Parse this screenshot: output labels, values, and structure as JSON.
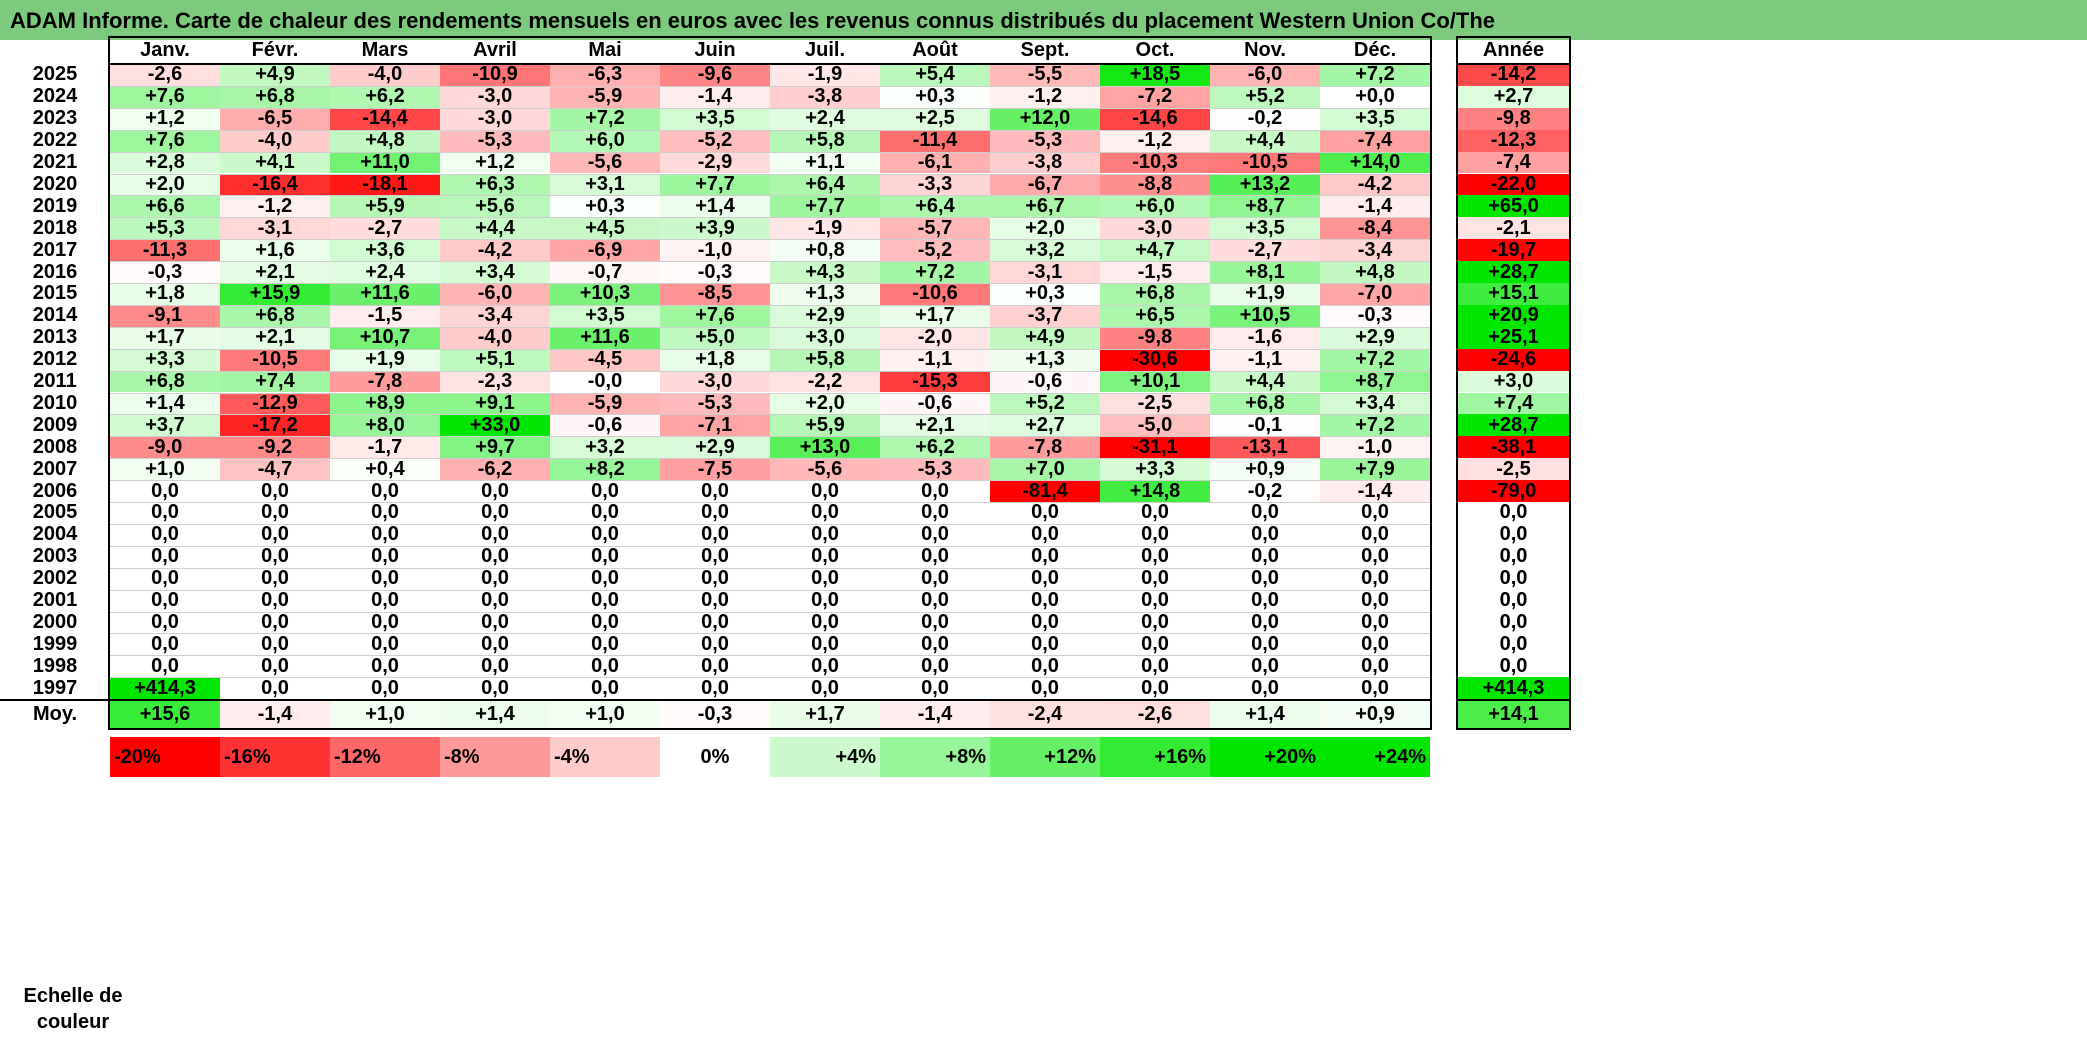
{
  "title": "ADAM Informe. Carte de chaleur des rendements mensuels en euros avec les revenus connus distribués du placement Western Union Co/The",
  "chart_data": {
    "type": "heatmap",
    "title": "ADAM Informe. Carte de chaleur des rendements mensuels en euros avec les revenus connus distribués du placement Western Union Co/The",
    "columns": [
      "Janv.",
      "Févr.",
      "Mars",
      "Avril",
      "Mai",
      "Juin",
      "Juil.",
      "Août",
      "Sept.",
      "Oct.",
      "Nov.",
      "Déc."
    ],
    "year_column": "Année",
    "rows": [
      {
        "year": "2025",
        "months": [
          "-2,6",
          "+4,9",
          "-4,0",
          "-10,9",
          "-6,3",
          "-9,6",
          "-1,9",
          "+5,4",
          "-5,5",
          "+18,5",
          "-6,0",
          "+7,2"
        ],
        "annual": "-14,2"
      },
      {
        "year": "2024",
        "months": [
          "+7,6",
          "+6,8",
          "+6,2",
          "-3,0",
          "-5,9",
          "-1,4",
          "-3,8",
          "+0,3",
          "-1,2",
          "-7,2",
          "+5,2",
          "+0,0"
        ],
        "annual": "+2,7"
      },
      {
        "year": "2023",
        "months": [
          "+1,2",
          "-6,5",
          "-14,4",
          "-3,0",
          "+7,2",
          "+3,5",
          "+2,4",
          "+2,5",
          "+12,0",
          "-14,6",
          "-0,2",
          "+3,5"
        ],
        "annual": "-9,8"
      },
      {
        "year": "2022",
        "months": [
          "+7,6",
          "-4,0",
          "+4,8",
          "-5,3",
          "+6,0",
          "-5,2",
          "+5,8",
          "-11,4",
          "-5,3",
          "-1,2",
          "+4,4",
          "-7,4"
        ],
        "annual": "-12,3"
      },
      {
        "year": "2021",
        "months": [
          "+2,8",
          "+4,1",
          "+11,0",
          "+1,2",
          "-5,6",
          "-2,9",
          "+1,1",
          "-6,1",
          "-3,8",
          "-10,3",
          "-10,5",
          "+14,0"
        ],
        "annual": "-7,4"
      },
      {
        "year": "2020",
        "months": [
          "+2,0",
          "-16,4",
          "-18,1",
          "+6,3",
          "+3,1",
          "+7,7",
          "+6,4",
          "-3,3",
          "-6,7",
          "-8,8",
          "+13,2",
          "-4,2"
        ],
        "annual": "-22,0"
      },
      {
        "year": "2019",
        "months": [
          "+6,6",
          "-1,2",
          "+5,9",
          "+5,6",
          "+0,3",
          "+1,4",
          "+7,7",
          "+6,4",
          "+6,7",
          "+6,0",
          "+8,7",
          "-1,4"
        ],
        "annual": "+65,0"
      },
      {
        "year": "2018",
        "months": [
          "+5,3",
          "-3,1",
          "-2,7",
          "+4,4",
          "+4,5",
          "+3,9",
          "-1,9",
          "-5,7",
          "+2,0",
          "-3,0",
          "+3,5",
          "-8,4"
        ],
        "annual": "-2,1"
      },
      {
        "year": "2017",
        "months": [
          "-11,3",
          "+1,6",
          "+3,6",
          "-4,2",
          "-6,9",
          "-1,0",
          "+0,8",
          "-5,2",
          "+3,2",
          "+4,7",
          "-2,7",
          "-3,4"
        ],
        "annual": "-19,7"
      },
      {
        "year": "2016",
        "months": [
          "-0,3",
          "+2,1",
          "+2,4",
          "+3,4",
          "-0,7",
          "-0,3",
          "+4,3",
          "+7,2",
          "-3,1",
          "-1,5",
          "+8,1",
          "+4,8"
        ],
        "annual": "+28,7"
      },
      {
        "year": "2015",
        "months": [
          "+1,8",
          "+15,9",
          "+11,6",
          "-6,0",
          "+10,3",
          "-8,5",
          "+1,3",
          "-10,6",
          "+0,3",
          "+6,8",
          "+1,9",
          "-7,0"
        ],
        "annual": "+15,1"
      },
      {
        "year": "2014",
        "months": [
          "-9,1",
          "+6,8",
          "-1,5",
          "-3,4",
          "+3,5",
          "+7,6",
          "+2,9",
          "+1,7",
          "-3,7",
          "+6,5",
          "+10,5",
          "-0,3"
        ],
        "annual": "+20,9"
      },
      {
        "year": "2013",
        "months": [
          "+1,7",
          "+2,1",
          "+10,7",
          "-4,0",
          "+11,6",
          "+5,0",
          "+3,0",
          "-2,0",
          "+4,9",
          "-9,8",
          "-1,6",
          "+2,9"
        ],
        "annual": "+25,1"
      },
      {
        "year": "2012",
        "months": [
          "+3,3",
          "-10,5",
          "+1,9",
          "+5,1",
          "-4,5",
          "+1,8",
          "+5,8",
          "-1,1",
          "+1,3",
          "-30,6",
          "-1,1",
          "+7,2"
        ],
        "annual": "-24,6"
      },
      {
        "year": "2011",
        "months": [
          "+6,8",
          "+7,4",
          "-7,8",
          "-2,3",
          "-0,0",
          "-3,0",
          "-2,2",
          "-15,3",
          "-0,6",
          "+10,1",
          "+4,4",
          "+8,7"
        ],
        "annual": "+3,0"
      },
      {
        "year": "2010",
        "months": [
          "+1,4",
          "-12,9",
          "+8,9",
          "+9,1",
          "-5,9",
          "-5,3",
          "+2,0",
          "-0,6",
          "+5,2",
          "-2,5",
          "+6,8",
          "+3,4"
        ],
        "annual": "+7,4"
      },
      {
        "year": "2009",
        "months": [
          "+3,7",
          "-17,2",
          "+8,0",
          "+33,0",
          "-0,6",
          "-7,1",
          "+5,9",
          "+2,1",
          "+2,7",
          "-5,0",
          "-0,1",
          "+7,2"
        ],
        "annual": "+28,7"
      },
      {
        "year": "2008",
        "months": [
          "-9,0",
          "-9,2",
          "-1,7",
          "+9,7",
          "+3,2",
          "+2,9",
          "+13,0",
          "+6,2",
          "-7,8",
          "-31,1",
          "-13,1",
          "-1,0"
        ],
        "annual": "-38,1"
      },
      {
        "year": "2007",
        "months": [
          "+1,0",
          "-4,7",
          "+0,4",
          "-6,2",
          "+8,2",
          "-7,5",
          "-5,6",
          "-5,3",
          "+7,0",
          "+3,3",
          "+0,9",
          "+7,9"
        ],
        "annual": "-2,5"
      },
      {
        "year": "2006",
        "months": [
          "0,0",
          "0,0",
          "0,0",
          "0,0",
          "0,0",
          "0,0",
          "0,0",
          "0,0",
          "-81,4",
          "+14,8",
          "-0,2",
          "-1,4"
        ],
        "annual": "-79,0"
      },
      {
        "year": "2005",
        "months": [
          "0,0",
          "0,0",
          "0,0",
          "0,0",
          "0,0",
          "0,0",
          "0,0",
          "0,0",
          "0,0",
          "0,0",
          "0,0",
          "0,0"
        ],
        "annual": "0,0"
      },
      {
        "year": "2004",
        "months": [
          "0,0",
          "0,0",
          "0,0",
          "0,0",
          "0,0",
          "0,0",
          "0,0",
          "0,0",
          "0,0",
          "0,0",
          "0,0",
          "0,0"
        ],
        "annual": "0,0"
      },
      {
        "year": "2003",
        "months": [
          "0,0",
          "0,0",
          "0,0",
          "0,0",
          "0,0",
          "0,0",
          "0,0",
          "0,0",
          "0,0",
          "0,0",
          "0,0",
          "0,0"
        ],
        "annual": "0,0"
      },
      {
        "year": "2002",
        "months": [
          "0,0",
          "0,0",
          "0,0",
          "0,0",
          "0,0",
          "0,0",
          "0,0",
          "0,0",
          "0,0",
          "0,0",
          "0,0",
          "0,0"
        ],
        "annual": "0,0"
      },
      {
        "year": "2001",
        "months": [
          "0,0",
          "0,0",
          "0,0",
          "0,0",
          "0,0",
          "0,0",
          "0,0",
          "0,0",
          "0,0",
          "0,0",
          "0,0",
          "0,0"
        ],
        "annual": "0,0"
      },
      {
        "year": "2000",
        "months": [
          "0,0",
          "0,0",
          "0,0",
          "0,0",
          "0,0",
          "0,0",
          "0,0",
          "0,0",
          "0,0",
          "0,0",
          "0,0",
          "0,0"
        ],
        "annual": "0,0"
      },
      {
        "year": "1999",
        "months": [
          "0,0",
          "0,0",
          "0,0",
          "0,0",
          "0,0",
          "0,0",
          "0,0",
          "0,0",
          "0,0",
          "0,0",
          "0,0",
          "0,0"
        ],
        "annual": "0,0"
      },
      {
        "year": "1998",
        "months": [
          "0,0",
          "0,0",
          "0,0",
          "0,0",
          "0,0",
          "0,0",
          "0,0",
          "0,0",
          "0,0",
          "0,0",
          "0,0",
          "0,0"
        ],
        "annual": "0,0"
      },
      {
        "year": "1997",
        "months": [
          "+414,3",
          "0,0",
          "0,0",
          "0,0",
          "0,0",
          "0,0",
          "0,0",
          "0,0",
          "0,0",
          "0,0",
          "0,0",
          "0,0"
        ],
        "annual": "+414,3"
      }
    ],
    "average": {
      "label": "Moy.",
      "months": [
        "+15,6",
        "-1,4",
        "+1,0",
        "+1,4",
        "+1,0",
        "-0,3",
        "+1,7",
        "-1,4",
        "-2,4",
        "-2,6",
        "+1,4",
        "+0,9"
      ],
      "annual": "+14,1"
    },
    "scale": {
      "label_line1": "Echelle de",
      "label_line2": "couleur",
      "steps": [
        "-20%",
        "-16%",
        "-12%",
        "-8%",
        "-4%",
        "0%",
        "+4%",
        "+8%",
        "+12%",
        "+16%",
        "+20%",
        "+24%"
      ]
    },
    "colors": {
      "negative_max": "#ff0000",
      "neutral": "#ffffff",
      "positive_max": "#00e600",
      "title_bar": "#7ccb7c"
    }
  }
}
